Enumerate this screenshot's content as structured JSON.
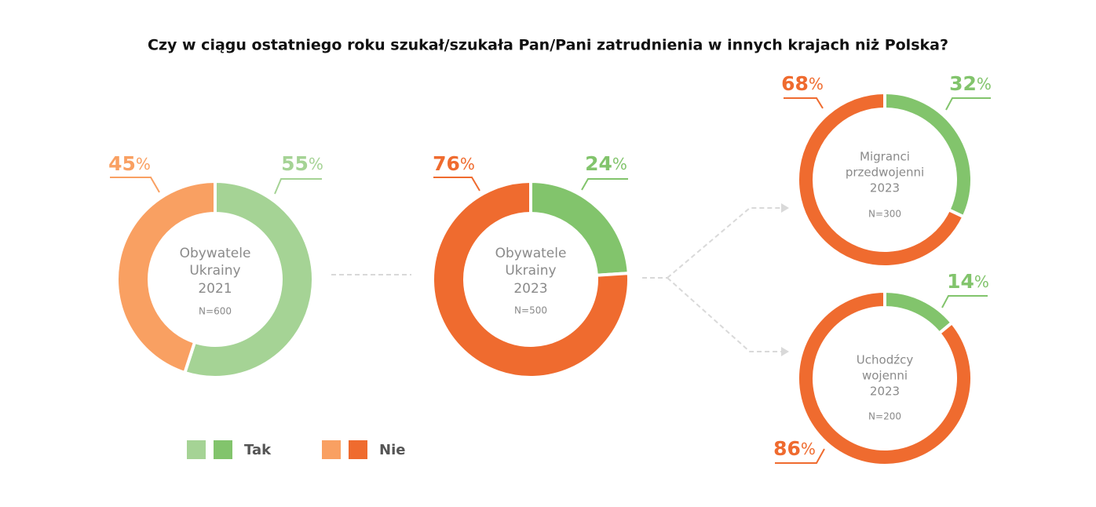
{
  "title": "Czy w ciągu ostatniego roku szukał/szukała Pan/Pani zatrudnienia w innych krajach niż Polska?",
  "unit": "%",
  "chart_data": [
    {
      "type": "donut",
      "center_lines": [
        "Obywatele",
        "Ukrainy",
        "2021"
      ],
      "note": "N=600",
      "series": [
        {
          "name": "Tak",
          "color": "#a5d395",
          "values": [
            55
          ]
        },
        {
          "name": "Nie",
          "color": "#f9a062",
          "values": [
            45
          ]
        }
      ]
    },
    {
      "type": "donut",
      "center_lines": [
        "Obywatele",
        "Ukrainy",
        "2023"
      ],
      "note": "N=500",
      "series": [
        {
          "name": "Tak",
          "color": "#82c46c",
          "values": [
            24
          ]
        },
        {
          "name": "Nie",
          "color": "#ef6b2f",
          "values": [
            76
          ]
        }
      ]
    },
    {
      "type": "donut",
      "center_lines": [
        "Migranci",
        "przedwojenni",
        "2023"
      ],
      "note": "N=300",
      "series": [
        {
          "name": "Tak",
          "color": "#82c46c",
          "values": [
            32
          ]
        },
        {
          "name": "Nie",
          "color": "#ef6b2f",
          "values": [
            68
          ]
        }
      ]
    },
    {
      "type": "donut",
      "center_lines": [
        "Uchodźcy",
        "wojenni",
        "2023"
      ],
      "note": "N=200",
      "series": [
        {
          "name": "Tak",
          "color": "#82c46c",
          "values": [
            14
          ]
        },
        {
          "name": "Nie",
          "color": "#ef6b2f",
          "values": [
            86
          ]
        }
      ]
    }
  ]
}
